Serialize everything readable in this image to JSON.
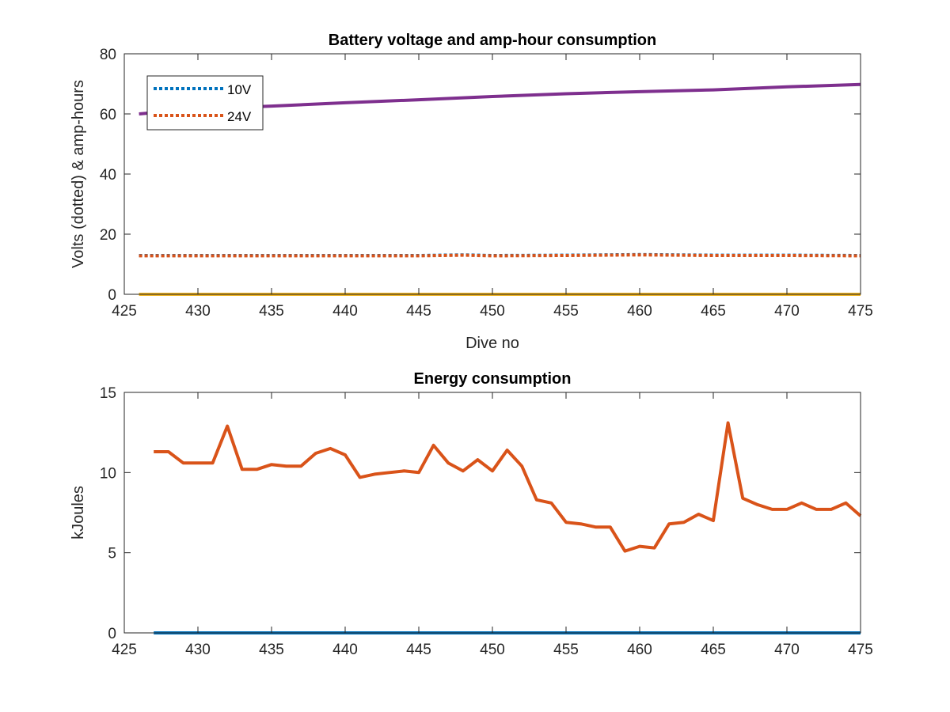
{
  "chart_data": [
    {
      "type": "line",
      "title": "Battery voltage and amp-hour consumption",
      "xlabel": "Dive no",
      "ylabel": "Volts (dotted) & amp-hours",
      "xlim": [
        425,
        475
      ],
      "ylim": [
        0,
        80
      ],
      "xticks": [
        "425",
        "430",
        "435",
        "440",
        "445",
        "450",
        "455",
        "460",
        "465",
        "470",
        "475"
      ],
      "yticks": [
        "0",
        "20",
        "40",
        "60",
        "80"
      ],
      "grid": false,
      "legend": {
        "placement": "top-left",
        "entries": [
          "10V",
          "24V"
        ]
      },
      "series": [
        {
          "name": "10V",
          "style": "dotted",
          "color": "#0072BD",
          "x": [
            426,
            430,
            435,
            440,
            445,
            448,
            450,
            455,
            460,
            465,
            470,
            475
          ],
          "y": [
            12.9,
            12.9,
            12.9,
            12.9,
            12.9,
            13.1,
            12.9,
            13.0,
            13.2,
            13.0,
            13.0,
            12.9
          ]
        },
        {
          "name": "24V",
          "style": "dotted",
          "color": "#D95319",
          "x": [
            426,
            430,
            435,
            440,
            445,
            448,
            450,
            455,
            460,
            465,
            470,
            475
          ],
          "y": [
            12.8,
            12.8,
            12.8,
            12.8,
            12.8,
            13.0,
            12.8,
            12.9,
            13.1,
            12.9,
            12.9,
            12.8
          ]
        },
        {
          "style": "solid",
          "color": "#EDB120",
          "x": [
            426,
            475
          ],
          "y": [
            0,
            0
          ]
        },
        {
          "style": "solid",
          "color": "#7E2F8E",
          "x": [
            426,
            430,
            435,
            440,
            445,
            450,
            455,
            460,
            465,
            470,
            475
          ],
          "y": [
            60.0,
            61.7,
            62.6,
            63.7,
            64.7,
            65.8,
            66.7,
            67.4,
            68.0,
            69.0,
            69.8
          ]
        }
      ]
    },
    {
      "type": "line",
      "title": "Energy consumption",
      "xlabel": "",
      "ylabel": "kJoules",
      "xlim": [
        425,
        475
      ],
      "ylim": [
        0,
        15
      ],
      "xticks": [
        "425",
        "430",
        "435",
        "440",
        "445",
        "450",
        "455",
        "460",
        "465",
        "470",
        "475"
      ],
      "yticks": [
        "0",
        "5",
        "10",
        "15"
      ],
      "grid": false,
      "series": [
        {
          "style": "solid",
          "color": "#0072BD",
          "x": [
            427,
            475
          ],
          "y": [
            0,
            0
          ]
        },
        {
          "style": "solid",
          "color": "#D95319",
          "x": [
            427,
            428,
            429,
            430,
            431,
            432,
            433,
            434,
            435,
            436,
            437,
            438,
            439,
            440,
            441,
            442,
            443,
            444,
            445,
            446,
            447,
            448,
            449,
            450,
            451,
            452,
            453,
            454,
            455,
            456,
            457,
            458,
            459,
            460,
            461,
            462,
            463,
            464,
            465,
            466,
            467,
            468,
            469,
            470,
            471,
            472,
            473,
            474,
            475
          ],
          "y": [
            11.3,
            11.3,
            10.6,
            10.6,
            10.6,
            12.9,
            10.2,
            10.2,
            10.5,
            10.4,
            10.4,
            11.2,
            11.5,
            11.1,
            9.7,
            9.9,
            10.0,
            10.1,
            10.0,
            11.7,
            10.6,
            10.1,
            10.8,
            10.1,
            11.4,
            10.4,
            8.3,
            8.1,
            6.9,
            6.8,
            6.6,
            6.6,
            5.1,
            5.4,
            5.3,
            6.8,
            6.9,
            7.4,
            7.0,
            13.1,
            8.4,
            8.0,
            7.7,
            7.7,
            8.1,
            7.7,
            7.7,
            8.1,
            7.3
          ]
        }
      ]
    }
  ]
}
